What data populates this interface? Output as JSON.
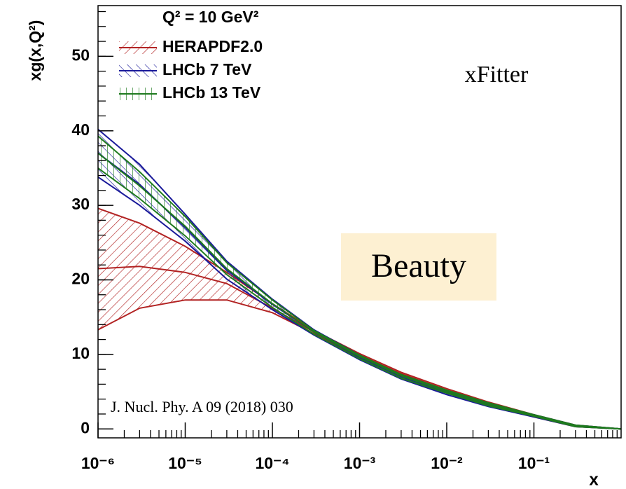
{
  "chart_data": {
    "type": "band",
    "x_label": "x",
    "y_label": "xg(x,Q²)",
    "legend_title": "Q² = 10 GeV²",
    "annotations": [
      "xFitter",
      "Beauty",
      "J. Nucl. Phy. A 09 (2018) 030"
    ],
    "xscale": "log",
    "xlim": [
      1e-06,
      1
    ],
    "ylim": [
      -1.2,
      56.8
    ],
    "xticks": [
      {
        "value": 1e-06,
        "label": "10⁻⁶"
      },
      {
        "value": 1e-05,
        "label": "10⁻⁵"
      },
      {
        "value": 0.0001,
        "label": "10⁻⁴"
      },
      {
        "value": 0.001,
        "label": "10⁻³"
      },
      {
        "value": 0.01,
        "label": "10⁻²"
      },
      {
        "value": 0.1,
        "label": "10⁻¹"
      }
    ],
    "yticks": [
      0,
      10,
      20,
      30,
      40,
      50
    ],
    "x": [
      1e-06,
      3e-06,
      1e-05,
      3e-05,
      0.0001,
      0.0003,
      0.001,
      0.003,
      0.01,
      0.03,
      0.1,
      0.3,
      1
    ],
    "series": [
      {
        "name": "HERAPDF2.0",
        "color": "#b22222",
        "hatch": 45,
        "values": [
          21.5,
          21.8,
          21.0,
          19.5,
          16.2,
          13.0,
          9.9,
          7.4,
          5.2,
          3.4,
          1.8,
          0.4,
          0
        ],
        "upper": [
          29.6,
          27.6,
          24.5,
          21.0,
          16.8,
          13.2,
          10.1,
          7.6,
          5.4,
          3.6,
          1.9,
          0.5,
          0
        ],
        "lower": [
          13.3,
          16.2,
          17.3,
          17.3,
          15.6,
          12.8,
          9.6,
          7.2,
          5.0,
          3.2,
          1.6,
          0.3,
          0
        ]
      },
      {
        "name": "LHCb 7 TeV",
        "color": "#1a1a9a",
        "hatch": -45,
        "values": [
          37.0,
          32.8,
          27.0,
          21.3,
          16.7,
          13.0,
          9.6,
          7.0,
          4.9,
          3.2,
          1.8,
          0.4,
          0
        ],
        "upper": [
          40.2,
          35.5,
          28.8,
          22.5,
          17.4,
          13.3,
          9.9,
          7.2,
          5.1,
          3.4,
          1.9,
          0.5,
          0
        ],
        "lower": [
          33.8,
          30.0,
          25.2,
          20.1,
          16.0,
          12.6,
          9.3,
          6.7,
          4.6,
          3.0,
          1.6,
          0.3,
          0
        ]
      },
      {
        "name": "LHCb 13 TeV",
        "color": "#1e7a1e",
        "hatch": 0,
        "values": [
          37.0,
          32.6,
          27.2,
          21.5,
          16.8,
          13.0,
          9.7,
          7.1,
          5.0,
          3.3,
          1.8,
          0.4,
          0
        ],
        "upper": [
          39.3,
          34.5,
          28.5,
          22.3,
          17.3,
          13.2,
          9.9,
          7.3,
          5.2,
          3.5,
          1.9,
          0.5,
          0
        ],
        "lower": [
          35.0,
          30.9,
          25.9,
          20.7,
          16.3,
          12.7,
          9.4,
          6.8,
          4.8,
          3.1,
          1.7,
          0.3,
          0
        ]
      }
    ]
  }
}
